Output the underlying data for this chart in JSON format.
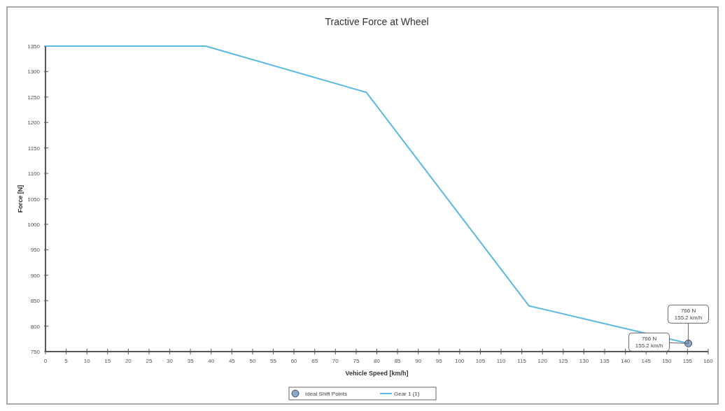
{
  "chart_data": {
    "type": "line",
    "title": "Tractive Force at Wheel",
    "xlabel": "Vehicle Speed [km/h]",
    "ylabel": "Force [N]",
    "xlim": [
      0,
      160
    ],
    "xticks": [
      0,
      5,
      10,
      15,
      20,
      25,
      30,
      35,
      40,
      45,
      50,
      55,
      60,
      65,
      70,
      75,
      80,
      85,
      90,
      95,
      100,
      105,
      110,
      115,
      120,
      125,
      130,
      135,
      140,
      145,
      150,
      155,
      160
    ],
    "ylim": [
      750,
      1350
    ],
    "yticks": [
      750,
      800,
      850,
      900,
      950,
      1000,
      1050,
      1100,
      1150,
      1200,
      1250,
      1300,
      1350
    ],
    "series": [
      {
        "name": "Ideal Shift Points",
        "type": "scatter",
        "marker": "circle",
        "color": "#8aa8c8",
        "x": [
          155.2
        ],
        "values": [
          766
        ]
      },
      {
        "name": "Gear 1 (1)",
        "color": "#5bb8e0",
        "x": [
          0,
          38.7,
          77.5,
          116.7,
          155.2
        ],
        "values": [
          1350,
          1350,
          1259,
          840,
          766
        ]
      }
    ],
    "annotations": [
      {
        "text": "766 N\n155.2 km/h",
        "x": 155.2,
        "y": 766
      },
      {
        "text": "766 N\n155.2 km/h",
        "x": 155.2,
        "y": 766
      }
    ],
    "legend": "bottom",
    "grid": false
  }
}
